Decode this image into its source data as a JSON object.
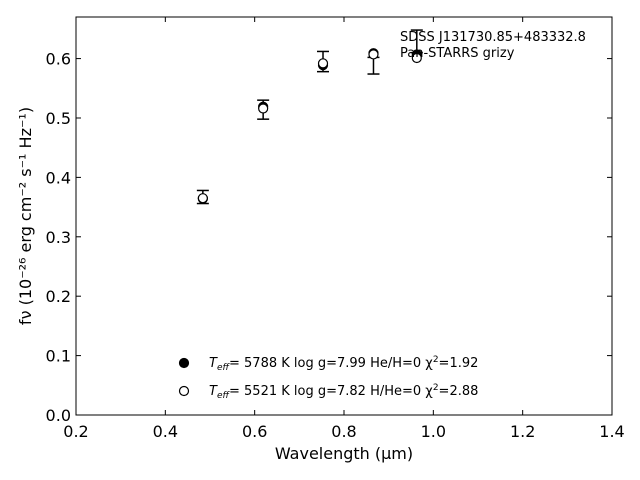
{
  "chart_data": {
    "type": "scatter",
    "title": "",
    "xlabel": "Wavelength (μm)",
    "ylabel": "fν (10⁻²⁶ erg cm⁻² s⁻¹ Hz⁻¹)",
    "xlim": [
      0.2,
      1.4
    ],
    "ylim": [
      0.0,
      0.67
    ],
    "xticks": [
      "0.2",
      "0.4",
      "0.6",
      "0.8",
      "1.0",
      "1.2",
      "1.4"
    ],
    "yticks": [
      "0.0",
      "0.1",
      "0.2",
      "0.3",
      "0.4",
      "0.5",
      "0.6"
    ],
    "annotation_lines": [
      "SDSS J131730.85+483332.8",
      "Pan-STARRS grizy"
    ],
    "observed": {
      "x": [
        0.484,
        0.619,
        0.753,
        0.866,
        0.963
      ],
      "y": [
        0.367,
        0.514,
        0.595,
        0.588,
        0.629
      ],
      "yerr": [
        0.011,
        0.016,
        0.017,
        0.014,
        0.019
      ]
    },
    "series": [
      {
        "marker": "filled",
        "x": [
          0.484,
          0.619,
          0.753,
          0.866,
          0.963
        ],
        "y": [
          0.364,
          0.519,
          0.589,
          0.609,
          0.607
        ],
        "label_parts": [
          "T",
          "eff",
          "=  5788 K  log g=7.99  He/H=0  χ",
          "2",
          "=1.92"
        ]
      },
      {
        "marker": "open",
        "x": [
          0.484,
          0.619,
          0.753,
          0.866,
          0.963
        ],
        "y": [
          0.365,
          0.516,
          0.592,
          0.607,
          0.601
        ],
        "label_parts": [
          "T",
          "eff",
          "=  5521 K  log g=7.82  H/He=0  χ",
          "2",
          "=2.88"
        ]
      }
    ],
    "legend_placement": "lower-center",
    "grid": false
  }
}
